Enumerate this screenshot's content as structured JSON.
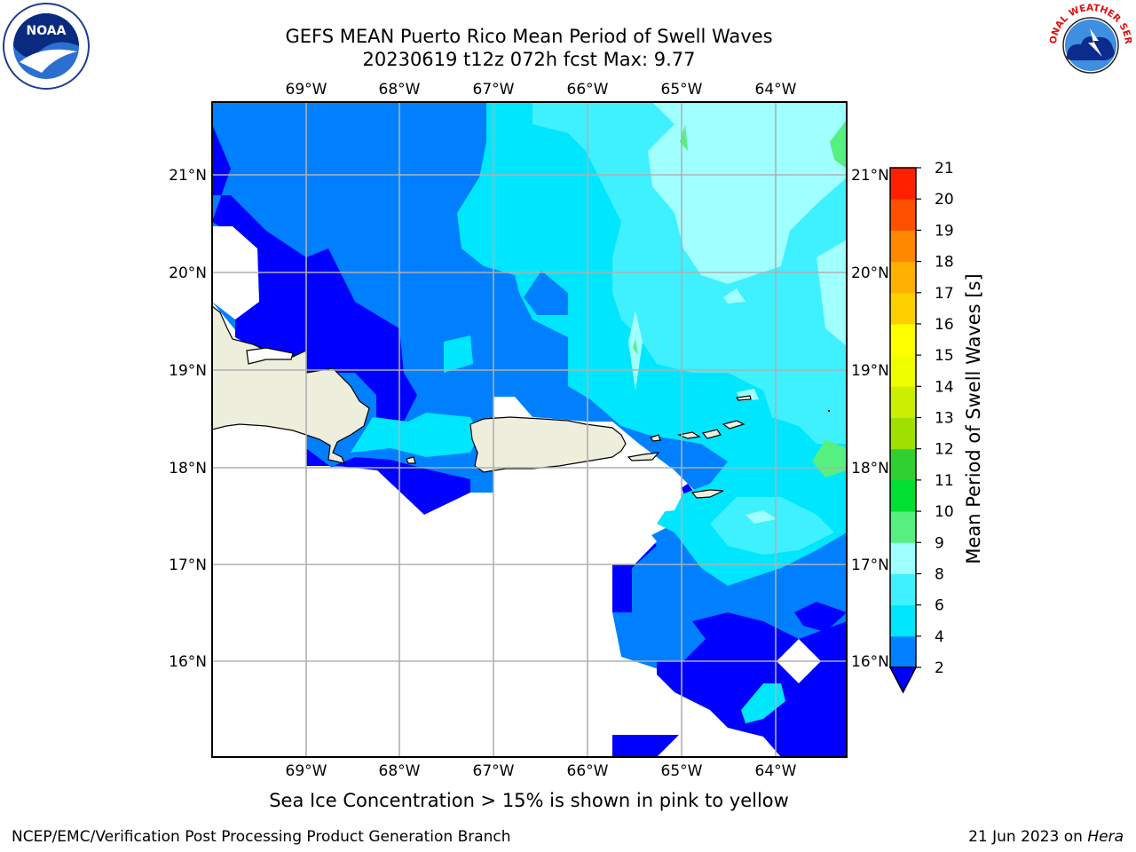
{
  "header": {
    "title_line1": "GEFS MEAN Puerto Rico Mean Period of Swell Waves",
    "title_line2": "20230619 t12z 072h fcst   Max: 9.77",
    "noaa_logo_text": "NOAA",
    "nws_logo_text": "NATIONAL WEATHER SERVICE"
  },
  "map": {
    "lon_labels": [
      "69°W",
      "68°W",
      "67°W",
      "66°W",
      "65°W",
      "64°W"
    ],
    "lat_labels": [
      "21°N",
      "20°N",
      "19°N",
      "18°N",
      "17°N",
      "16°N"
    ],
    "extent": {
      "lon": [
        -70.0,
        -63.25
      ],
      "lat": [
        15.0,
        21.75
      ]
    },
    "gridlines": true,
    "regions": [
      "Hispaniola",
      "Puerto Rico",
      "Virgin Islands",
      "Caribbean Sea",
      "Atlantic Ocean"
    ]
  },
  "colorbar": {
    "title": "Mean Period of Swell Waves [s]",
    "ticks": [
      "2",
      "4",
      "6",
      "8",
      "9",
      "10",
      "11",
      "12",
      "13",
      "14",
      "15",
      "16",
      "17",
      "18",
      "19",
      "20",
      "21"
    ],
    "levels": [
      2,
      4,
      6,
      8,
      9,
      10,
      11,
      12,
      13,
      14,
      15,
      16,
      17,
      18,
      19,
      20,
      21
    ],
    "colors": [
      "#0080ff",
      "#00e6ff",
      "#3ff0ff",
      "#a0ffff",
      "#55f080",
      "#00e030",
      "#30d030",
      "#9fe000",
      "#ccee00",
      "#eeff00",
      "#ffff00",
      "#ffd000",
      "#ffb000",
      "#ff8800",
      "#ff5000",
      "#ff2000"
    ],
    "under_color": "#0000ff",
    "extend": "min"
  },
  "footer": {
    "subtitle": "Sea Ice Concentration > 15% is shown in pink to yellow",
    "left": "NCEP/EMC/Verification Post Processing Product Generation Branch",
    "date": "21 Jun 2023 on ",
    "machine": "Hera"
  }
}
